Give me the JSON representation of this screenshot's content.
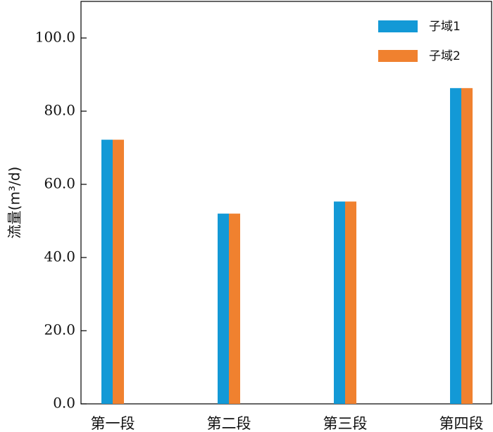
{
  "chart_data": {
    "type": "bar",
    "categories": [
      "第一段",
      "第二段",
      "第三段",
      "第四段"
    ],
    "series": [
      {
        "name": "子域1",
        "values": [
          72.2,
          52.0,
          55.3,
          86.3
        ],
        "color": "#1399d6"
      },
      {
        "name": "子域2",
        "values": [
          72.2,
          52.0,
          55.3,
          86.3
        ],
        "color": "#f0812f"
      }
    ],
    "title": "",
    "xlabel": "",
    "ylabel": "流量(m³/d)",
    "ylim": [
      0,
      110
    ],
    "yticks": [
      0,
      20,
      40,
      60,
      80,
      100
    ],
    "ytick_labels": [
      "0.0",
      "20.0",
      "40.0",
      "60.0",
      "80.0",
      "100.0"
    ],
    "grid": false,
    "legend_position": "top-right"
  }
}
